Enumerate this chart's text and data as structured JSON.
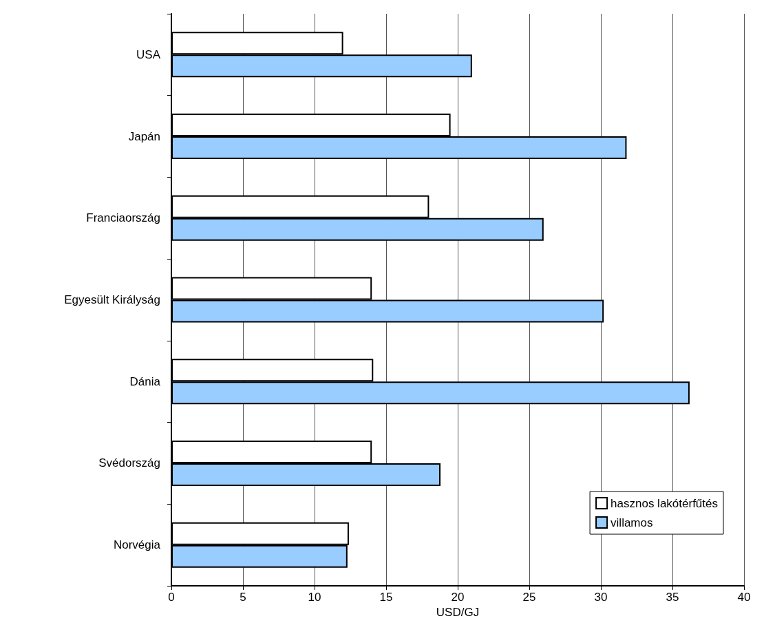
{
  "chart_data": {
    "type": "bar",
    "orientation": "horizontal",
    "xlabel": "USD/GJ",
    "categories": [
      "USA",
      "Japán",
      "Franciaország",
      "Egyesült Királyság",
      "Dánia",
      "Svédország",
      "Norvégia"
    ],
    "series": [
      {
        "name": "hasznos lakótérfűtés",
        "color": "#ffffff",
        "values": [
          12.0,
          19.5,
          18.0,
          14.0,
          14.1,
          14.0,
          12.4
        ]
      },
      {
        "name": "villamos",
        "color": "#99ccff",
        "values": [
          21.0,
          31.8,
          26.0,
          30.2,
          36.2,
          18.8,
          12.3
        ]
      }
    ],
    "xlim": [
      0,
      40
    ],
    "xticks": [
      0,
      5,
      10,
      15,
      20,
      25,
      30,
      35,
      40
    ],
    "grid": "x",
    "legend": "bottom right"
  }
}
